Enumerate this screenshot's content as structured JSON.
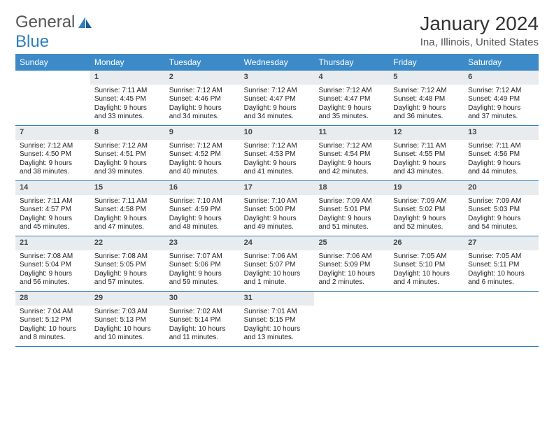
{
  "logo": {
    "text1": "General",
    "text2": "Blue"
  },
  "title": "January 2024",
  "location": "Ina, Illinois, United States",
  "colors": {
    "header_bg": "#3c8bc8",
    "header_text": "#ffffff",
    "daynum_bg": "#e9ecef",
    "rule": "#2f7fbf",
    "text": "#222222"
  },
  "day_names": [
    "Sunday",
    "Monday",
    "Tuesday",
    "Wednesday",
    "Thursday",
    "Friday",
    "Saturday"
  ],
  "weeks": [
    [
      {
        "day": "",
        "sunrise": "",
        "sunset": "",
        "daylight1": "",
        "daylight2": ""
      },
      {
        "day": "1",
        "sunrise": "Sunrise: 7:11 AM",
        "sunset": "Sunset: 4:45 PM",
        "daylight1": "Daylight: 9 hours",
        "daylight2": "and 33 minutes."
      },
      {
        "day": "2",
        "sunrise": "Sunrise: 7:12 AM",
        "sunset": "Sunset: 4:46 PM",
        "daylight1": "Daylight: 9 hours",
        "daylight2": "and 34 minutes."
      },
      {
        "day": "3",
        "sunrise": "Sunrise: 7:12 AM",
        "sunset": "Sunset: 4:47 PM",
        "daylight1": "Daylight: 9 hours",
        "daylight2": "and 34 minutes."
      },
      {
        "day": "4",
        "sunrise": "Sunrise: 7:12 AM",
        "sunset": "Sunset: 4:47 PM",
        "daylight1": "Daylight: 9 hours",
        "daylight2": "and 35 minutes."
      },
      {
        "day": "5",
        "sunrise": "Sunrise: 7:12 AM",
        "sunset": "Sunset: 4:48 PM",
        "daylight1": "Daylight: 9 hours",
        "daylight2": "and 36 minutes."
      },
      {
        "day": "6",
        "sunrise": "Sunrise: 7:12 AM",
        "sunset": "Sunset: 4:49 PM",
        "daylight1": "Daylight: 9 hours",
        "daylight2": "and 37 minutes."
      }
    ],
    [
      {
        "day": "7",
        "sunrise": "Sunrise: 7:12 AM",
        "sunset": "Sunset: 4:50 PM",
        "daylight1": "Daylight: 9 hours",
        "daylight2": "and 38 minutes."
      },
      {
        "day": "8",
        "sunrise": "Sunrise: 7:12 AM",
        "sunset": "Sunset: 4:51 PM",
        "daylight1": "Daylight: 9 hours",
        "daylight2": "and 39 minutes."
      },
      {
        "day": "9",
        "sunrise": "Sunrise: 7:12 AM",
        "sunset": "Sunset: 4:52 PM",
        "daylight1": "Daylight: 9 hours",
        "daylight2": "and 40 minutes."
      },
      {
        "day": "10",
        "sunrise": "Sunrise: 7:12 AM",
        "sunset": "Sunset: 4:53 PM",
        "daylight1": "Daylight: 9 hours",
        "daylight2": "and 41 minutes."
      },
      {
        "day": "11",
        "sunrise": "Sunrise: 7:12 AM",
        "sunset": "Sunset: 4:54 PM",
        "daylight1": "Daylight: 9 hours",
        "daylight2": "and 42 minutes."
      },
      {
        "day": "12",
        "sunrise": "Sunrise: 7:11 AM",
        "sunset": "Sunset: 4:55 PM",
        "daylight1": "Daylight: 9 hours",
        "daylight2": "and 43 minutes."
      },
      {
        "day": "13",
        "sunrise": "Sunrise: 7:11 AM",
        "sunset": "Sunset: 4:56 PM",
        "daylight1": "Daylight: 9 hours",
        "daylight2": "and 44 minutes."
      }
    ],
    [
      {
        "day": "14",
        "sunrise": "Sunrise: 7:11 AM",
        "sunset": "Sunset: 4:57 PM",
        "daylight1": "Daylight: 9 hours",
        "daylight2": "and 45 minutes."
      },
      {
        "day": "15",
        "sunrise": "Sunrise: 7:11 AM",
        "sunset": "Sunset: 4:58 PM",
        "daylight1": "Daylight: 9 hours",
        "daylight2": "and 47 minutes."
      },
      {
        "day": "16",
        "sunrise": "Sunrise: 7:10 AM",
        "sunset": "Sunset: 4:59 PM",
        "daylight1": "Daylight: 9 hours",
        "daylight2": "and 48 minutes."
      },
      {
        "day": "17",
        "sunrise": "Sunrise: 7:10 AM",
        "sunset": "Sunset: 5:00 PM",
        "daylight1": "Daylight: 9 hours",
        "daylight2": "and 49 minutes."
      },
      {
        "day": "18",
        "sunrise": "Sunrise: 7:09 AM",
        "sunset": "Sunset: 5:01 PM",
        "daylight1": "Daylight: 9 hours",
        "daylight2": "and 51 minutes."
      },
      {
        "day": "19",
        "sunrise": "Sunrise: 7:09 AM",
        "sunset": "Sunset: 5:02 PM",
        "daylight1": "Daylight: 9 hours",
        "daylight2": "and 52 minutes."
      },
      {
        "day": "20",
        "sunrise": "Sunrise: 7:09 AM",
        "sunset": "Sunset: 5:03 PM",
        "daylight1": "Daylight: 9 hours",
        "daylight2": "and 54 minutes."
      }
    ],
    [
      {
        "day": "21",
        "sunrise": "Sunrise: 7:08 AM",
        "sunset": "Sunset: 5:04 PM",
        "daylight1": "Daylight: 9 hours",
        "daylight2": "and 56 minutes."
      },
      {
        "day": "22",
        "sunrise": "Sunrise: 7:08 AM",
        "sunset": "Sunset: 5:05 PM",
        "daylight1": "Daylight: 9 hours",
        "daylight2": "and 57 minutes."
      },
      {
        "day": "23",
        "sunrise": "Sunrise: 7:07 AM",
        "sunset": "Sunset: 5:06 PM",
        "daylight1": "Daylight: 9 hours",
        "daylight2": "and 59 minutes."
      },
      {
        "day": "24",
        "sunrise": "Sunrise: 7:06 AM",
        "sunset": "Sunset: 5:07 PM",
        "daylight1": "Daylight: 10 hours",
        "daylight2": "and 1 minute."
      },
      {
        "day": "25",
        "sunrise": "Sunrise: 7:06 AM",
        "sunset": "Sunset: 5:09 PM",
        "daylight1": "Daylight: 10 hours",
        "daylight2": "and 2 minutes."
      },
      {
        "day": "26",
        "sunrise": "Sunrise: 7:05 AM",
        "sunset": "Sunset: 5:10 PM",
        "daylight1": "Daylight: 10 hours",
        "daylight2": "and 4 minutes."
      },
      {
        "day": "27",
        "sunrise": "Sunrise: 7:05 AM",
        "sunset": "Sunset: 5:11 PM",
        "daylight1": "Daylight: 10 hours",
        "daylight2": "and 6 minutes."
      }
    ],
    [
      {
        "day": "28",
        "sunrise": "Sunrise: 7:04 AM",
        "sunset": "Sunset: 5:12 PM",
        "daylight1": "Daylight: 10 hours",
        "daylight2": "and 8 minutes."
      },
      {
        "day": "29",
        "sunrise": "Sunrise: 7:03 AM",
        "sunset": "Sunset: 5:13 PM",
        "daylight1": "Daylight: 10 hours",
        "daylight2": "and 10 minutes."
      },
      {
        "day": "30",
        "sunrise": "Sunrise: 7:02 AM",
        "sunset": "Sunset: 5:14 PM",
        "daylight1": "Daylight: 10 hours",
        "daylight2": "and 11 minutes."
      },
      {
        "day": "31",
        "sunrise": "Sunrise: 7:01 AM",
        "sunset": "Sunset: 5:15 PM",
        "daylight1": "Daylight: 10 hours",
        "daylight2": "and 13 minutes."
      },
      {
        "day": "",
        "sunrise": "",
        "sunset": "",
        "daylight1": "",
        "daylight2": ""
      },
      {
        "day": "",
        "sunrise": "",
        "sunset": "",
        "daylight1": "",
        "daylight2": ""
      },
      {
        "day": "",
        "sunrise": "",
        "sunset": "",
        "daylight1": "",
        "daylight2": ""
      }
    ]
  ]
}
